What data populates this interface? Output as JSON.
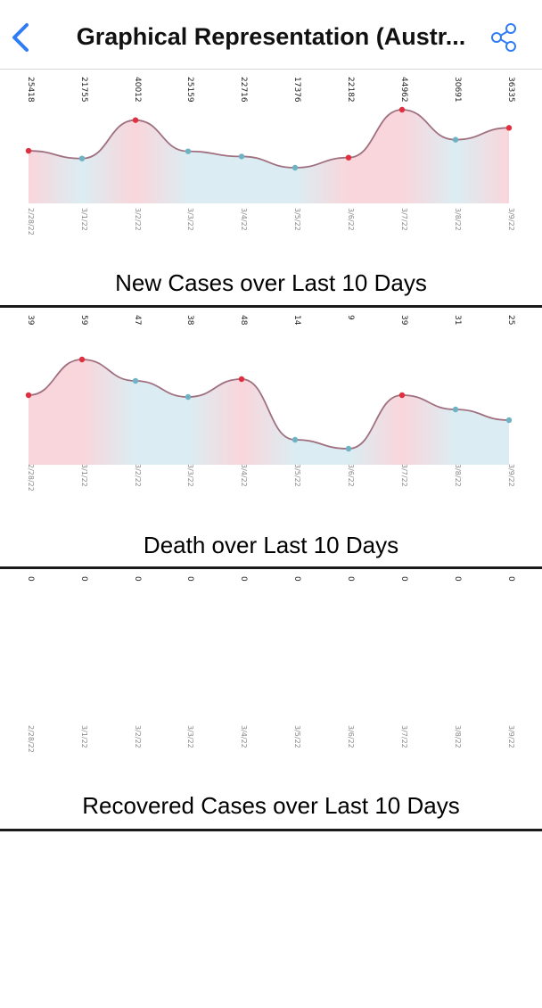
{
  "nav": {
    "title": "Graphical Representation (Austr...",
    "back_icon": "chevron-left-icon",
    "share_icon": "share-icon",
    "accent_color": "#2f7cf6"
  },
  "colors": {
    "peak_point": "#e0303f",
    "valley_point": "#6fb2c4",
    "fill_warm": "#f7c8cf",
    "fill_cool": "#cfe7ee",
    "divider": "#1a1a1a"
  },
  "charts": [
    {
      "title": "New Cases over Last 10 Days",
      "chart_data": {
        "type": "area",
        "title": "New Cases over Last 10 Days",
        "x": [
          "2/28/22",
          "3/1/22",
          "3/2/22",
          "3/3/22",
          "3/4/22",
          "3/5/22",
          "3/6/22",
          "3/7/22",
          "3/8/22",
          "3/9/22"
        ],
        "values": [
          25418,
          21755,
          40012,
          25159,
          22716,
          17376,
          22182,
          44962,
          30691,
          36335
        ],
        "value_labels": [
          "25418",
          "21755",
          "40012",
          "25159",
          "22716",
          "17376",
          "22182",
          "44962",
          "30691",
          "36335"
        ]
      }
    },
    {
      "title": "Death over Last 10 Days",
      "chart_data": {
        "type": "area",
        "title": "Death over Last 10 Days",
        "x": [
          "2/28/22",
          "3/1/22",
          "3/2/22",
          "3/3/22",
          "3/4/22",
          "3/5/22",
          "3/6/22",
          "3/7/22",
          "3/8/22",
          "3/9/22"
        ],
        "values": [
          39,
          59,
          47,
          38,
          48,
          14,
          9,
          39,
          31,
          25
        ],
        "value_labels": [
          "39",
          "59",
          "47",
          "38",
          "48",
          "14",
          "9",
          "39",
          "31",
          "25"
        ]
      }
    },
    {
      "title": "Recovered Cases over Last 10 Days",
      "chart_data": {
        "type": "area",
        "title": "Recovered Cases over Last 10 Days",
        "x": [
          "2/28/22",
          "3/1/22",
          "3/2/22",
          "3/3/22",
          "3/4/22",
          "3/5/22",
          "3/6/22",
          "3/7/22",
          "3/8/22",
          "3/9/22"
        ],
        "values": [
          0,
          0,
          0,
          0,
          0,
          0,
          0,
          0,
          0,
          0
        ],
        "value_labels": [
          "0",
          "0",
          "0",
          "0",
          "0",
          "0",
          "0",
          "0",
          "0",
          "0"
        ]
      }
    }
  ]
}
